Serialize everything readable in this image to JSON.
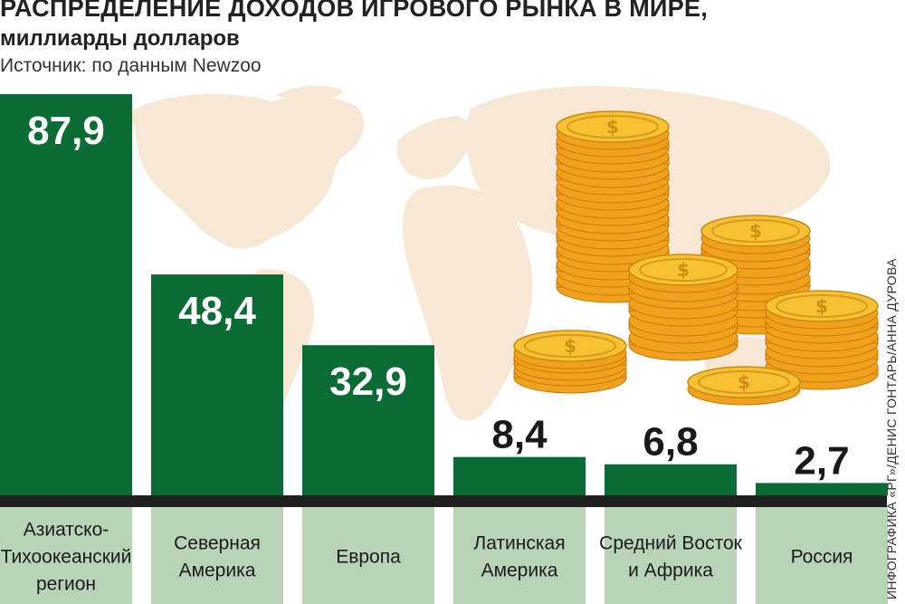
{
  "header": {
    "title": "РАСПРЕДЕЛЕНИЕ ДОХОДОВ ИГРОВОГО РЫНКА В МИРЕ,",
    "subtitle": "миллиарды долларов",
    "source": "Источник: по данным Newzoo"
  },
  "credit": "ИНФОГРАФИКА «РГ»/ДЕНИС ГОНТАРЬ/АННА ДУРОВА",
  "colors": {
    "bar": "#0b6b35",
    "label_bg": "#b9d3b9",
    "baseline": "#1f1f1f",
    "value_on_bar": "#ffffff",
    "value_above_bar": "#1a1a1a",
    "map": "#f6e8d4"
  },
  "chart_data": {
    "type": "bar",
    "categories": [
      [
        "Азиатско-",
        "Тихоокеанский",
        "регион"
      ],
      [
        "Северная",
        "Америка"
      ],
      [
        "Европа"
      ],
      [
        "Латинская",
        "Америка"
      ],
      [
        "Средний Восток",
        "и Африка"
      ],
      [
        "Россия"
      ]
    ],
    "value_labels": [
      "87,9",
      "48,4",
      "32,9",
      "8,4",
      "6,8",
      "2,7"
    ],
    "values": [
      87.9,
      48.4,
      32.9,
      8.4,
      6.8,
      2.7
    ],
    "title": "РАСПРЕДЕЛЕНИЕ ДОХОДОВ ИГРОВОГО РЫНКА В МИРЕ,",
    "ylabel": "миллиарды долларов",
    "ylim": [
      0,
      87.9
    ],
    "grid": false,
    "legend": "none"
  }
}
